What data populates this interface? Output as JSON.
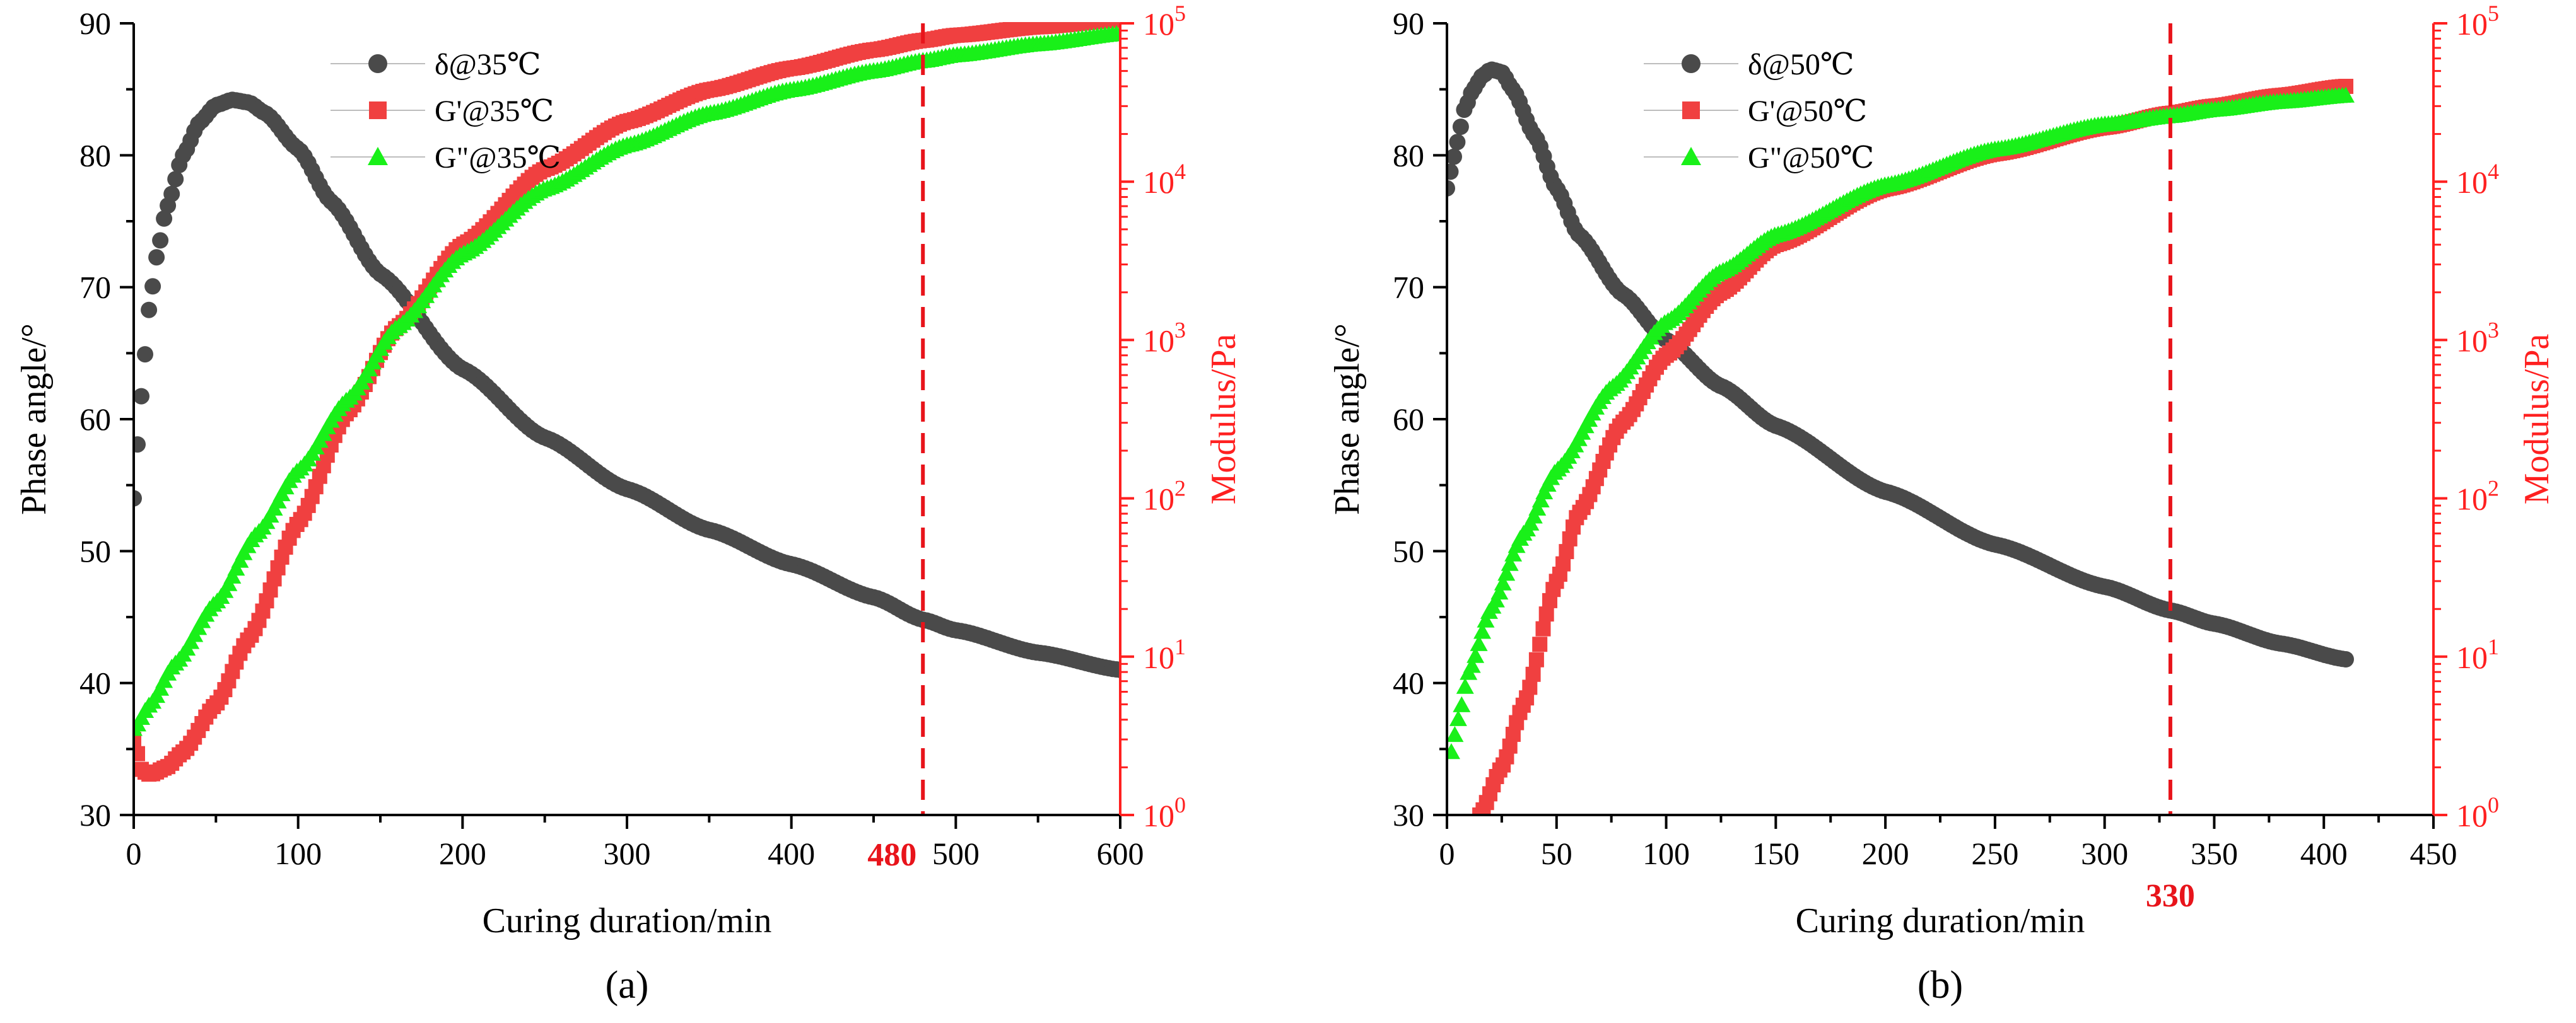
{
  "colors": {
    "phase": "#4a4a4a",
    "storage": "#f04040",
    "loss": "#19f019",
    "right_axis": "#ff2020",
    "marker_line": "#e8141b",
    "axis": "#000000"
  },
  "chart_data": [
    {
      "type": "scatter",
      "panel_label": "(a)",
      "xlabel": "Curing duration/min",
      "ylabel": "Phase angle/°",
      "y2label": "Modulus/Pa",
      "xlim": [
        0,
        600
      ],
      "ylim": [
        30,
        90
      ],
      "y2lim_log10": [
        0,
        5
      ],
      "x_ticks": [
        0,
        100,
        200,
        300,
        400,
        500,
        600
      ],
      "y_ticks": [
        30,
        40,
        50,
        60,
        70,
        80,
        90
      ],
      "y2_ticks": [
        {
          "base": "10",
          "exp": "0"
        },
        {
          "base": "10",
          "exp": "1"
        },
        {
          "base": "10",
          "exp": "2"
        },
        {
          "base": "10",
          "exp": "3"
        },
        {
          "base": "10",
          "exp": "4"
        },
        {
          "base": "10",
          "exp": "5"
        }
      ],
      "vline": {
        "x": 480,
        "label": "480"
      },
      "legend": [
        "δ@35℃",
        "G'@35℃",
        "G\"@35℃"
      ],
      "x_max_data": 600,
      "series": [
        {
          "name": "δ@35℃",
          "axis": "left",
          "marker": "circle",
          "x": [
            0,
            3,
            6,
            10,
            15,
            20,
            30,
            40,
            50,
            60,
            70,
            80,
            100,
            120,
            150,
            200,
            250,
            300,
            350,
            400,
            450,
            480,
            500,
            550,
            600
          ],
          "y": [
            54,
            59,
            64,
            69,
            73,
            76,
            80,
            82.5,
            83.8,
            84.2,
            84,
            83.2,
            80.5,
            76.5,
            71,
            63.8,
            58.6,
            54.7,
            51.6,
            49,
            46.5,
            44.8,
            44,
            42.3,
            41
          ]
        },
        {
          "name": "G'@35℃",
          "axis": "right",
          "marker": "square",
          "x": [
            0,
            5,
            10,
            20,
            30,
            50,
            70,
            100,
            130,
            160,
            200,
            250,
            300,
            350,
            400,
            450,
            480,
            500,
            550,
            600
          ],
          "y": [
            3.0,
            1.9,
            1.8,
            2.0,
            2.5,
            5,
            13,
            70,
            350,
            1200,
            4000,
            12000,
            24000,
            38000,
            52000,
            68000,
            78000,
            84000,
            95000,
            105000
          ]
        },
        {
          "name": "G\"@35℃",
          "axis": "right",
          "marker": "triangle",
          "x": [
            0,
            10,
            25,
            50,
            75,
            100,
            130,
            160,
            200,
            250,
            300,
            350,
            400,
            450,
            480,
            500,
            550,
            600
          ],
          "y": [
            3.5,
            5,
            9,
            22,
            60,
            150,
            420,
            1200,
            3500,
            9000,
            17000,
            27000,
            38000,
            50000,
            58000,
            63000,
            74000,
            86000
          ]
        }
      ]
    },
    {
      "type": "scatter",
      "panel_label": "(b)",
      "xlabel": "Curing duration/min",
      "ylabel": "Phase angle/°",
      "y2label": "Modulus/Pa",
      "xlim": [
        0,
        450
      ],
      "ylim": [
        30,
        90
      ],
      "y2lim_log10": [
        0,
        5
      ],
      "x_ticks": [
        0,
        50,
        100,
        150,
        200,
        250,
        300,
        350,
        400,
        450
      ],
      "y_ticks": [
        30,
        40,
        50,
        60,
        70,
        80,
        90
      ],
      "y2_ticks": [
        {
          "base": "10",
          "exp": "0"
        },
        {
          "base": "10",
          "exp": "1"
        },
        {
          "base": "10",
          "exp": "2"
        },
        {
          "base": "10",
          "exp": "3"
        },
        {
          "base": "10",
          "exp": "4"
        },
        {
          "base": "10",
          "exp": "5"
        }
      ],
      "vline": {
        "x": 330,
        "label": "330"
      },
      "legend": [
        "δ@50℃",
        "G'@50℃",
        "G\"@50℃"
      ],
      "x_max_data": 410,
      "series": [
        {
          "name": "δ@50℃",
          "axis": "left",
          "marker": "circle",
          "x": [
            0,
            2,
            4,
            6,
            8,
            12,
            16,
            20,
            25,
            30,
            40,
            50,
            60,
            80,
            100,
            125,
            150,
            200,
            250,
            300,
            330,
            350,
            380,
            410
          ],
          "y": [
            77.5,
            79,
            80.5,
            82,
            83.5,
            85,
            86,
            86.5,
            86.3,
            85,
            81.5,
            77.5,
            74,
            69.5,
            66,
            62.5,
            59.5,
            54.5,
            50.5,
            47.3,
            45.5,
            44.5,
            43,
            41.8
          ]
        },
        {
          "name": "G'@50℃",
          "axis": "right",
          "marker": "square",
          "x": [
            15,
            25,
            35,
            50,
            60,
            80,
            100,
            125,
            150,
            200,
            250,
            300,
            330,
            350,
            380,
            410
          ],
          "y": [
            1.0,
            2.0,
            5,
            30,
            80,
            300,
            800,
            2000,
            4000,
            9000,
            15000,
            22000,
            27000,
            30000,
            35000,
            40000
          ]
        },
        {
          "name": "G\"@50℃",
          "axis": "right",
          "marker": "triangle",
          "x": [
            2,
            5,
            10,
            20,
            35,
            50,
            75,
            100,
            125,
            150,
            200,
            250,
            300,
            330,
            350,
            380,
            410
          ],
          "y": [
            2.5,
            4,
            8,
            20,
            60,
            150,
            500,
            1300,
            2700,
            4600,
            9500,
            16000,
            23000,
            26000,
            28500,
            32000,
            35000
          ]
        }
      ]
    }
  ]
}
